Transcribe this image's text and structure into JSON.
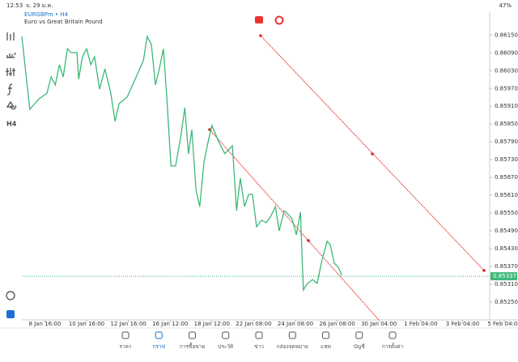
{
  "status_bar": {
    "time": "12:53",
    "date": "จ. 29 ม.ค.",
    "battery": "47%"
  },
  "symbol": {
    "name": "EURGBPm • H4",
    "description": "Euro vs Great Britain Pound"
  },
  "chart_data": {
    "type": "line",
    "xlim": [
      -0.5,
      111.5
    ],
    "xticks": [
      {
        "value": 5,
        "label": "8 Jan 16:00"
      },
      {
        "value": 15,
        "label": "10 Jan 16:00"
      },
      {
        "value": 25,
        "label": "12 Jan 16:00"
      },
      {
        "value": 35,
        "label": "16 Jan 12:00"
      },
      {
        "value": 45,
        "label": "18 Jan 12:00"
      },
      {
        "value": 55,
        "label": "22 Jan 08:00"
      },
      {
        "value": 65,
        "label": "24 Jan 08:00"
      },
      {
        "value": 75,
        "label": "26 Jan 08:00"
      },
      {
        "value": 85,
        "label": "30 Jan 04:00"
      },
      {
        "value": 95,
        "label": "1 Feb 04:00"
      },
      {
        "value": 105,
        "label": "3 Feb 04:00"
      },
      {
        "value": 115,
        "label": "5 Feb 04:00"
      }
    ],
    "ylim": [
      0.8519,
      0.8623
    ],
    "yticks": [
      {
        "value": 0.8615,
        "label": "0.86150"
      },
      {
        "value": 0.8609,
        "label": "0.86090"
      },
      {
        "value": 0.8603,
        "label": "0.86030"
      },
      {
        "value": 0.8597,
        "label": "0.85970"
      },
      {
        "value": 0.8591,
        "label": "0.85910"
      },
      {
        "value": 0.8585,
        "label": "0.85850"
      },
      {
        "value": 0.8579,
        "label": "0.85790"
      },
      {
        "value": 0.8573,
        "label": "0.85730"
      },
      {
        "value": 0.8567,
        "label": "0.85670"
      },
      {
        "value": 0.8561,
        "label": "0.85610"
      },
      {
        "value": 0.8555,
        "label": "0.85550"
      },
      {
        "value": 0.8549,
        "label": "0.85490"
      },
      {
        "value": 0.8543,
        "label": "0.85430"
      },
      {
        "value": 0.8537,
        "label": "0.85370"
      },
      {
        "value": 0.8531,
        "label": "0.85310"
      },
      {
        "value": 0.8525,
        "label": "0.85250"
      }
    ],
    "series": [
      {
        "color": "#3cb878",
        "x": [
          -0.5,
          1.4,
          3.6,
          5.5,
          6.5,
          7.5,
          8.5,
          9.4,
          10.4,
          11.3,
          12.7,
          13.1,
          14.0,
          15.0,
          16.0,
          16.9,
          18.1,
          19.4,
          20.8,
          21.8,
          22.8,
          24.7,
          26.6,
          28.6,
          29.5,
          30.5,
          31.5,
          32.4,
          33.4,
          34.2,
          35.2,
          36.3,
          37.5,
          38.5,
          39.4,
          40.2,
          41.2,
          42.1,
          43.1,
          44.1,
          45.0,
          46.6,
          48.1,
          49.9,
          50.9,
          51.8,
          52.8,
          53.8,
          54.7,
          55.7,
          56.9,
          58.0,
          59.0,
          60.2,
          61.1,
          62.3,
          63.3,
          64.2,
          65.2,
          66.2,
          66.9,
          67.9,
          69.1,
          70.2,
          71.4,
          72.6,
          73.3,
          74.3,
          75.3,
          76.1
        ],
        "values": [
          0.86145,
          0.859,
          0.85935,
          0.85954,
          0.86009,
          0.85982,
          0.8605,
          0.86009,
          0.86104,
          0.86091,
          0.86091,
          0.86001,
          0.86077,
          0.86104,
          0.8605,
          0.86077,
          0.85968,
          0.86036,
          0.85954,
          0.85859,
          0.85919,
          0.85941,
          0.86001,
          0.86064,
          0.86145,
          0.86118,
          0.85982,
          0.86036,
          0.86104,
          0.85941,
          0.85709,
          0.85709,
          0.85804,
          0.85905,
          0.8575,
          0.85831,
          0.85627,
          0.85572,
          0.85722,
          0.85791,
          0.85845,
          0.85791,
          0.8575,
          0.85777,
          0.85558,
          0.85668,
          0.85572,
          0.85613,
          0.85613,
          0.85504,
          0.85526,
          0.85518,
          0.85537,
          0.85572,
          0.8549,
          0.85558,
          0.85545,
          0.85531,
          0.85477,
          0.85553,
          0.85291,
          0.85313,
          0.85326,
          0.85313,
          0.85395,
          0.85455,
          0.85444,
          0.85381,
          0.85367,
          0.8534
        ]
      }
    ],
    "price_line": 0.85337
  },
  "nav": [
    "ราคา",
    "กราฟ",
    "การซื้อขาย",
    "ประวัติ",
    "ข่าว",
    "กล่องจดหมาย",
    "แชท",
    "บัญชี",
    "การตั้งค่า"
  ]
}
